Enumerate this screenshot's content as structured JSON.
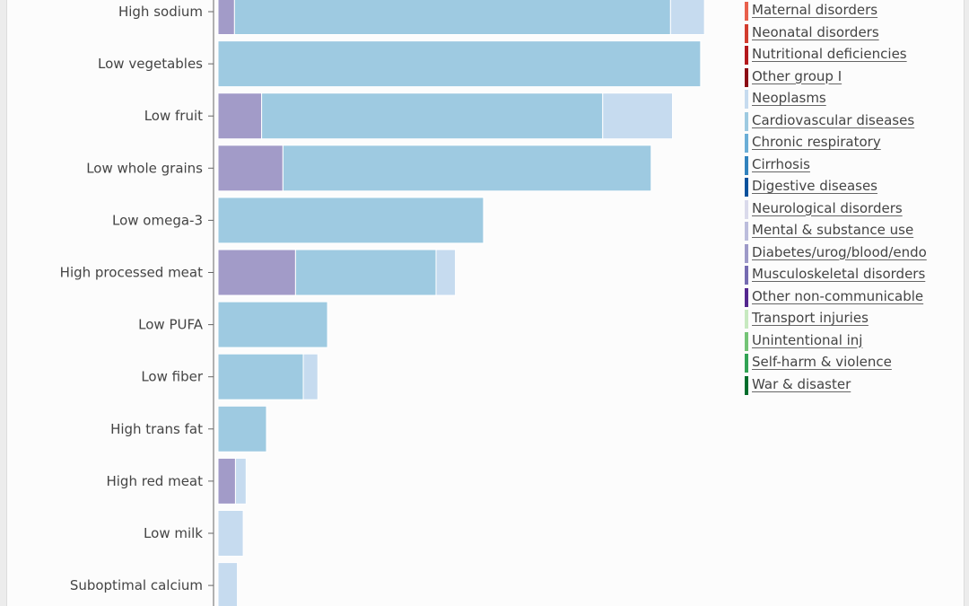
{
  "chart_data": {
    "type": "bar",
    "orientation": "horizontal",
    "stacked": true,
    "categories": [
      "High sodium",
      "Low vegetables",
      "Low fruit",
      "Low whole grains",
      "Low omega-3",
      "High processed meat",
      "Low PUFA",
      "Low fiber",
      "High trans fat",
      "High red meat",
      "Low milk",
      "Suboptimal calcium"
    ],
    "series": [
      {
        "name": "Diabetes/urog/blood/endo",
        "color": "#a29bc8",
        "values": [
          1.7,
          0,
          4.5,
          6.7,
          0,
          8.0,
          0,
          0,
          0,
          1.8,
          0,
          0
        ]
      },
      {
        "name": "Cardiovascular diseases",
        "color": "#9ecae1",
        "values": [
          45.0,
          49.8,
          35.2,
          38.0,
          27.4,
          14.5,
          11.3,
          8.8,
          5.0,
          0,
          0,
          0
        ]
      },
      {
        "name": "Neoplasms",
        "color": "#c6dbef",
        "values": [
          3.5,
          0,
          7.2,
          0,
          0,
          2.0,
          0,
          1.5,
          0,
          1.1,
          2.6,
          2.0
        ]
      }
    ],
    "legend": {
      "position": "right",
      "entries": [
        {
          "name": "Maternal disorders",
          "color": "#e8604c"
        },
        {
          "name": "Neonatal disorders",
          "color": "#d23c2e"
        },
        {
          "name": "Nutritional deficiencies",
          "color": "#b3181c"
        },
        {
          "name": "Other group I",
          "color": "#8b0c15"
        },
        {
          "name": "Neoplasms",
          "color": "#c6dbef"
        },
        {
          "name": "Cardiovascular diseases",
          "color": "#9ecae1"
        },
        {
          "name": "Chronic respiratory",
          "color": "#6baed6"
        },
        {
          "name": "Cirrhosis",
          "color": "#3182bd"
        },
        {
          "name": "Digestive diseases",
          "color": "#08519c"
        },
        {
          "name": "Neurological disorders",
          "color": "#dadaeb"
        },
        {
          "name": "Mental & substance use",
          "color": "#bcbddc"
        },
        {
          "name": "Diabetes/urog/blood/endo",
          "color": "#9e9ac8"
        },
        {
          "name": "Musculoskeletal disorders",
          "color": "#756bb1"
        },
        {
          "name": "Other non-communicable",
          "color": "#54278f"
        },
        {
          "name": "Transport injuries",
          "color": "#c7e9c0"
        },
        {
          "name": "Unintentional inj",
          "color": "#74c476"
        },
        {
          "name": "Self-harm & violence",
          "color": "#31a354"
        },
        {
          "name": "War & disaster",
          "color": "#006d2c"
        }
      ]
    },
    "xlim": [
      0,
      55
    ],
    "grid": false,
    "axis_color": "#666666"
  }
}
